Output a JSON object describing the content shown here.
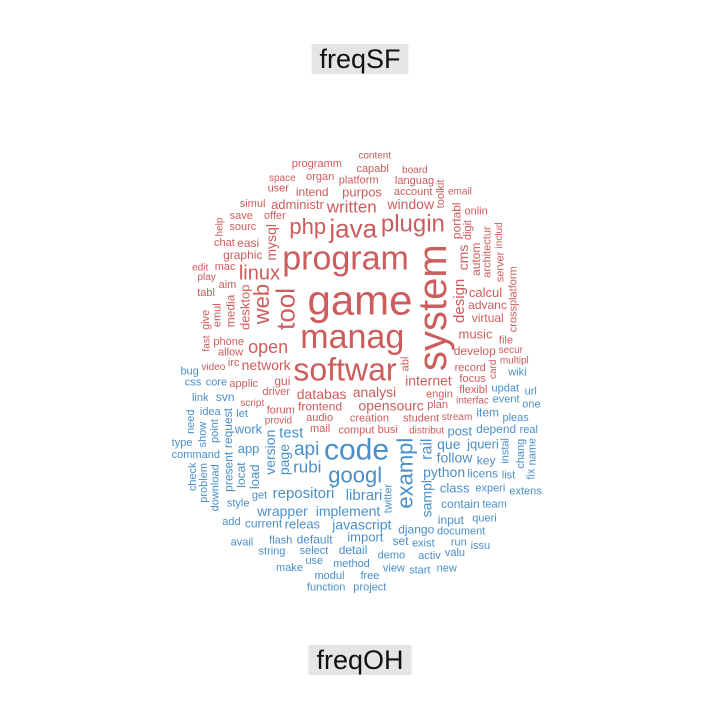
{
  "chart_data": {
    "type": "wordcloud",
    "title": "",
    "groups": [
      {
        "name": "freqSF",
        "color": "#cd5c5c",
        "words": [
          [
            "game",
            42
          ],
          [
            "system",
            40
          ],
          [
            "manag",
            34
          ],
          [
            "program",
            34
          ],
          [
            "softwar",
            32
          ],
          [
            "tool",
            26
          ],
          [
            "java",
            26
          ],
          [
            "plugin",
            24
          ],
          [
            "php",
            22
          ],
          [
            "web",
            22
          ],
          [
            "linux",
            20
          ],
          [
            "open",
            18
          ],
          [
            "written",
            17
          ],
          [
            "design",
            15
          ],
          [
            "analysi",
            14
          ],
          [
            "internet",
            14
          ],
          [
            "databas",
            14
          ],
          [
            "mysql",
            14
          ],
          [
            "network",
            14
          ],
          [
            "window",
            14
          ],
          [
            "opensourc",
            14
          ],
          [
            "cms",
            14
          ],
          [
            "desktop",
            13
          ],
          [
            "music",
            13
          ],
          [
            "purpos",
            13
          ],
          [
            "administr",
            13
          ],
          [
            "calcul",
            13
          ],
          [
            "autom",
            12
          ],
          [
            "graphic",
            12
          ],
          [
            "develop",
            12
          ],
          [
            "frontend",
            12
          ],
          [
            "advanc",
            12
          ],
          [
            "media",
            12
          ],
          [
            "virtual",
            12
          ],
          [
            "gui",
            12
          ],
          [
            "easi",
            12
          ],
          [
            "intend",
            12
          ],
          [
            "portabl",
            12
          ],
          [
            "account",
            11
          ],
          [
            "creation",
            11
          ],
          [
            "record",
            11
          ],
          [
            "offer",
            11
          ],
          [
            "architectur",
            11
          ],
          [
            "driver",
            11
          ],
          [
            "platform",
            11
          ],
          [
            "phone",
            11
          ],
          [
            "engin",
            11
          ],
          [
            "digit",
            11
          ],
          [
            "aim",
            11
          ],
          [
            "allow",
            11
          ],
          [
            "audio",
            11
          ],
          [
            "sourc",
            11
          ],
          [
            "emul",
            11
          ],
          [
            "mac",
            11
          ],
          [
            "focus",
            11
          ],
          [
            "languag",
            11
          ],
          [
            "student",
            11
          ],
          [
            "server",
            11
          ],
          [
            "organ",
            11
          ],
          [
            "plan",
            11
          ],
          [
            "chat",
            11
          ],
          [
            "forum",
            11
          ],
          [
            "toolkit",
            11
          ],
          [
            "comput",
            11
          ],
          [
            "applic",
            11
          ],
          [
            "save",
            11
          ],
          [
            "user",
            11
          ],
          [
            "crossplatform",
            11
          ],
          [
            "capabl",
            11
          ],
          [
            "flexibl",
            11
          ],
          [
            "simul",
            11
          ],
          [
            "tabl",
            11
          ],
          [
            "abl",
            11
          ],
          [
            "busi",
            11
          ],
          [
            "file",
            11
          ],
          [
            "onlin",
            11
          ],
          [
            "mail",
            11
          ],
          [
            "give",
            11
          ],
          [
            "programm",
            11
          ],
          [
            "irc",
            11
          ],
          [
            "board",
            10
          ],
          [
            "space",
            10
          ],
          [
            "card",
            10
          ],
          [
            "email",
            10
          ],
          [
            "secur",
            10
          ],
          [
            "script",
            10
          ],
          [
            "interfac",
            10
          ],
          [
            "includ",
            10
          ],
          [
            "play",
            10
          ],
          [
            "provid",
            10
          ],
          [
            "distribut",
            10
          ],
          [
            "edit",
            10
          ],
          [
            "fast",
            10
          ],
          [
            "stream",
            10
          ],
          [
            "video",
            10
          ],
          [
            "content",
            10
          ],
          [
            "multipl",
            10
          ],
          [
            "help",
            10
          ]
        ]
      },
      {
        "name": "freqOH",
        "color": "#4a8fc9",
        "words": [
          [
            "code",
            30
          ],
          [
            "exampl",
            22
          ],
          [
            "googl",
            22
          ],
          [
            "api",
            19
          ],
          [
            "rail",
            16
          ],
          [
            "rubi",
            17
          ],
          [
            "librari",
            15
          ],
          [
            "repositori",
            15
          ],
          [
            "test",
            15
          ],
          [
            "version",
            14
          ],
          [
            "implement",
            14
          ],
          [
            "python",
            14
          ],
          [
            "que",
            14
          ],
          [
            "sampl",
            14
          ],
          [
            "follow",
            14
          ],
          [
            "javascript",
            14
          ],
          [
            "wrapper",
            14
          ],
          [
            "page",
            14
          ],
          [
            "work",
            13
          ],
          [
            "class",
            13
          ],
          [
            "post",
            13
          ],
          [
            "app",
            13
          ],
          [
            "load",
            13
          ],
          [
            "jqueri",
            13
          ],
          [
            "releas",
            13
          ],
          [
            "import",
            13
          ],
          [
            "django",
            12
          ],
          [
            "request",
            12
          ],
          [
            "contain",
            12
          ],
          [
            "depend",
            12
          ],
          [
            "licens",
            12
          ],
          [
            "item",
            12
          ],
          [
            "locat",
            12
          ],
          [
            "default",
            12
          ],
          [
            "key",
            12
          ],
          [
            "set",
            12
          ],
          [
            "input",
            12
          ],
          [
            "present",
            12
          ],
          [
            "svn",
            12
          ],
          [
            "detail",
            12
          ],
          [
            "current",
            12
          ],
          [
            "experi",
            11
          ],
          [
            "twitter",
            11
          ],
          [
            "let",
            11
          ],
          [
            "exist",
            11
          ],
          [
            "select",
            11
          ],
          [
            "style",
            11
          ],
          [
            "point",
            11
          ],
          [
            "event",
            11
          ],
          [
            "demo",
            11
          ],
          [
            "flash",
            11
          ],
          [
            "document",
            11
          ],
          [
            "instal",
            11
          ],
          [
            "method",
            11
          ],
          [
            "updat",
            11
          ],
          [
            "command",
            11
          ],
          [
            "idea",
            11
          ],
          [
            "download",
            11
          ],
          [
            "pleas",
            11
          ],
          [
            "team",
            11
          ],
          [
            "core",
            11
          ],
          [
            "use",
            11
          ],
          [
            "show",
            11
          ],
          [
            "get",
            11
          ],
          [
            "queri",
            11
          ],
          [
            "activ",
            11
          ],
          [
            "list",
            11
          ],
          [
            "chang",
            11
          ],
          [
            "link",
            11
          ],
          [
            "run",
            11
          ],
          [
            "view",
            11
          ],
          [
            "string",
            11
          ],
          [
            "problem",
            11
          ],
          [
            "add",
            11
          ],
          [
            "real",
            11
          ],
          [
            "wiki",
            11
          ],
          [
            "free",
            11
          ],
          [
            "need",
            11
          ],
          [
            "modul",
            11
          ],
          [
            "valu",
            11
          ],
          [
            "make",
            11
          ],
          [
            "start",
            11
          ],
          [
            "name",
            11
          ],
          [
            "one",
            11
          ],
          [
            "css",
            11
          ],
          [
            "avail",
            11
          ],
          [
            "extens",
            11
          ],
          [
            "check",
            11
          ],
          [
            "project",
            11
          ],
          [
            "type",
            11
          ],
          [
            "function",
            11
          ],
          [
            "url",
            11
          ],
          [
            "fix",
            11
          ],
          [
            "issu",
            11
          ],
          [
            "bug",
            11
          ],
          [
            "new",
            11
          ]
        ]
      }
    ]
  }
}
